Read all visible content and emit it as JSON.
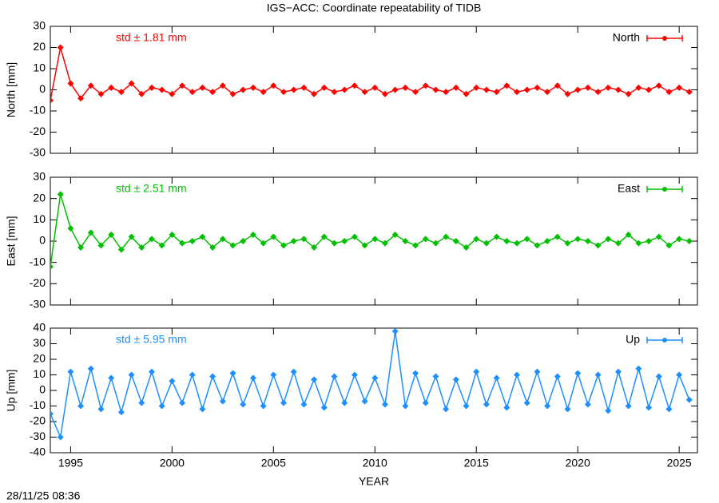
{
  "chart_data": [
    {
      "type": "line",
      "title": "IGS−ACC: Coordinate repeatability of TIDB",
      "ylabel": "North [mm]",
      "annotation": "std ± 1.81 mm",
      "xlim": [
        1994.0,
        2025.9
      ],
      "ylim": [
        -30,
        30
      ],
      "yticks": [
        -30,
        -20,
        -10,
        0,
        10,
        20,
        30
      ],
      "x": [
        1994,
        1994.5,
        1995,
        1995.5,
        1996,
        1996.5,
        1997,
        1997.5,
        1998,
        1998.5,
        1999,
        1999.5,
        2000,
        2000.5,
        2001,
        2001.5,
        2002,
        2002.5,
        2003,
        2003.5,
        2004,
        2004.5,
        2005,
        2005.5,
        2006,
        2006.5,
        2007,
        2007.5,
        2008,
        2008.5,
        2009,
        2009.5,
        2010,
        2010.5,
        2011,
        2011.5,
        2012,
        2012.5,
        2013,
        2013.5,
        2014,
        2014.5,
        2015,
        2015.5,
        2016,
        2016.5,
        2017,
        2017.5,
        2018,
        2018.5,
        2019,
        2019.5,
        2020,
        2020.5,
        2021,
        2021.5,
        2022,
        2022.5,
        2023,
        2023.5,
        2024,
        2024.5,
        2025,
        2025.5
      ],
      "series": [
        {
          "name": "North",
          "color": "#ff0000",
          "values": [
            -5,
            20,
            3,
            -4,
            2,
            -2,
            1,
            -1,
            3,
            -2,
            1,
            0,
            -2,
            2,
            -1,
            1,
            -1,
            2,
            -2,
            0,
            1,
            -1,
            2,
            -1,
            0,
            1,
            -2,
            1,
            -1,
            0,
            2,
            -1,
            1,
            -2,
            0,
            1,
            -1,
            2,
            0,
            -1,
            1,
            -2,
            1,
            0,
            -1,
            2,
            -1,
            0,
            1,
            -1,
            2,
            -2,
            0,
            1,
            -1,
            1,
            0,
            -2,
            1,
            0,
            2,
            -1,
            1,
            -1
          ]
        }
      ]
    },
    {
      "type": "line",
      "ylabel": "East [mm]",
      "annotation": "std ± 2.51 mm",
      "xlim": [
        1994.0,
        2025.9
      ],
      "ylim": [
        -30,
        30
      ],
      "yticks": [
        -30,
        -20,
        -10,
        0,
        10,
        20,
        30
      ],
      "x": [
        1994,
        1994.5,
        1995,
        1995.5,
        1996,
        1996.5,
        1997,
        1997.5,
        1998,
        1998.5,
        1999,
        1999.5,
        2000,
        2000.5,
        2001,
        2001.5,
        2002,
        2002.5,
        2003,
        2003.5,
        2004,
        2004.5,
        2005,
        2005.5,
        2006,
        2006.5,
        2007,
        2007.5,
        2008,
        2008.5,
        2009,
        2009.5,
        2010,
        2010.5,
        2011,
        2011.5,
        2012,
        2012.5,
        2013,
        2013.5,
        2014,
        2014.5,
        2015,
        2015.5,
        2016,
        2016.5,
        2017,
        2017.5,
        2018,
        2018.5,
        2019,
        2019.5,
        2020,
        2020.5,
        2021,
        2021.5,
        2022,
        2022.5,
        2023,
        2023.5,
        2024,
        2024.5,
        2025,
        2025.5
      ],
      "series": [
        {
          "name": "East",
          "color": "#00c000",
          "values": [
            -12,
            22,
            6,
            -3,
            4,
            -2,
            3,
            -4,
            2,
            -3,
            1,
            -2,
            3,
            -1,
            0,
            2,
            -3,
            1,
            -2,
            0,
            3,
            -1,
            2,
            -2,
            0,
            1,
            -3,
            2,
            -1,
            0,
            2,
            -2,
            1,
            -1,
            3,
            0,
            -2,
            1,
            -1,
            2,
            0,
            -3,
            1,
            -1,
            2,
            0,
            -1,
            1,
            -2,
            0,
            2,
            -1,
            1,
            0,
            -2,
            1,
            -1,
            3,
            -1,
            0,
            2,
            -2,
            1,
            0
          ]
        }
      ]
    },
    {
      "type": "line",
      "ylabel": "Up [mm]",
      "annotation": "std ± 5.95 mm",
      "xlabel": "YEAR",
      "xlim": [
        1994.0,
        2025.9
      ],
      "ylim": [
        -40,
        40
      ],
      "yticks": [
        -40,
        -30,
        -20,
        -10,
        0,
        10,
        20,
        30,
        40
      ],
      "xticks": [
        1995,
        2000,
        2005,
        2010,
        2015,
        2020,
        2025
      ],
      "x": [
        1994,
        1994.5,
        1995,
        1995.5,
        1996,
        1996.5,
        1997,
        1997.5,
        1998,
        1998.5,
        1999,
        1999.5,
        2000,
        2000.5,
        2001,
        2001.5,
        2002,
        2002.5,
        2003,
        2003.5,
        2004,
        2004.5,
        2005,
        2005.5,
        2006,
        2006.5,
        2007,
        2007.5,
        2008,
        2008.5,
        2009,
        2009.5,
        2010,
        2010.5,
        2011,
        2011.5,
        2012,
        2012.5,
        2013,
        2013.5,
        2014,
        2014.5,
        2015,
        2015.5,
        2016,
        2016.5,
        2017,
        2017.5,
        2018,
        2018.5,
        2019,
        2019.5,
        2020,
        2020.5,
        2021,
        2021.5,
        2022,
        2022.5,
        2023,
        2023.5,
        2024,
        2024.5,
        2025,
        2025.5
      ],
      "series": [
        {
          "name": "Up",
          "color": "#1e8fff",
          "values": [
            -15,
            -30,
            12,
            -10,
            14,
            -12,
            8,
            -14,
            10,
            -8,
            12,
            -10,
            6,
            -8,
            10,
            -12,
            9,
            -7,
            11,
            -9,
            8,
            -10,
            10,
            -8,
            12,
            -9,
            7,
            -11,
            9,
            -8,
            10,
            -7,
            8,
            -9,
            38,
            -10,
            11,
            -8,
            9,
            -12,
            7,
            -10,
            12,
            -9,
            8,
            -11,
            10,
            -8,
            12,
            -10,
            9,
            -12,
            11,
            -9,
            10,
            -13,
            12,
            -10,
            14,
            -11,
            9,
            -12,
            10,
            -6
          ]
        }
      ]
    }
  ],
  "timestamp": "28/11/25 08:36"
}
